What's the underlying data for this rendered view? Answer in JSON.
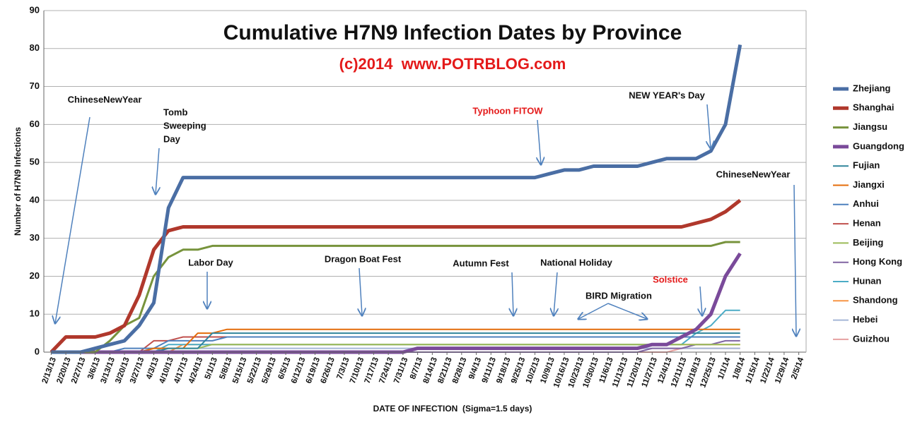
{
  "chart_data": {
    "type": "line",
    "title": "Cumulative H7N9 Infection Dates by Province",
    "subtitle": "(c)2014  www.POTRBLOG.com",
    "x_label": "DATE OF INFECTION  (Sigma=1.5 days)",
    "y_label": "Number of H7N9 Infections",
    "ylim": [
      0,
      90
    ],
    "yticks": [
      0,
      10,
      20,
      30,
      40,
      50,
      60,
      70,
      80,
      90
    ],
    "grid": true,
    "legend": "right",
    "categories": [
      "2/13/13",
      "2/20/13",
      "2/27/13",
      "3/6/13",
      "3/13/13",
      "3/20/13",
      "3/27/13",
      "4/3/13",
      "4/10/13",
      "4/17/13",
      "4/24/13",
      "5/1/13",
      "5/8/13",
      "5/15/13",
      "5/22/13",
      "5/29/13",
      "6/5/13",
      "6/12/13",
      "6/19/13",
      "6/26/13",
      "7/3/13",
      "7/10/13",
      "7/17/13",
      "7/24/13",
      "7/31/13",
      "8/7/13",
      "8/14/13",
      "8/21/13",
      "8/28/13",
      "9/4/13",
      "9/11/13",
      "9/18/13",
      "9/25/13",
      "10/2/13",
      "10/9/13",
      "10/16/13",
      "10/23/13",
      "10/30/13",
      "11/6/13",
      "11/13/13",
      "11/20/13",
      "11/27/13",
      "12/4/13",
      "12/11/13",
      "12/18/13",
      "12/25/13",
      "1/1/14",
      "1/8/14",
      "1/15/14",
      "1/22/14",
      "1/29/14",
      "2/5/14"
    ],
    "series": [
      {
        "name": "Zhejiang",
        "color": "#4a6ea4",
        "width": 5,
        "values": [
          0,
          0,
          0,
          1,
          2,
          3,
          7,
          13,
          38,
          46,
          46,
          46,
          46,
          46,
          46,
          46,
          46,
          46,
          46,
          46,
          46,
          46,
          46,
          46,
          46,
          46,
          46,
          46,
          46,
          46,
          46,
          46,
          46,
          46,
          47,
          48,
          48,
          49,
          49,
          49,
          49,
          50,
          51,
          51,
          51,
          53,
          60,
          81,
          null,
          null,
          null,
          null
        ]
      },
      {
        "name": "Shanghai",
        "color": "#b0382c",
        "width": 5,
        "values": [
          0,
          4,
          4,
          4,
          5,
          7,
          15,
          27,
          32,
          33,
          33,
          33,
          33,
          33,
          33,
          33,
          33,
          33,
          33,
          33,
          33,
          33,
          33,
          33,
          33,
          33,
          33,
          33,
          33,
          33,
          33,
          33,
          33,
          33,
          33,
          33,
          33,
          33,
          33,
          33,
          33,
          33,
          33,
          33,
          34,
          35,
          37,
          40,
          null,
          null,
          null,
          null
        ]
      },
      {
        "name": "Jiangsu",
        "color": "#77933c",
        "width": 3,
        "values": [
          0,
          0,
          0,
          0,
          3,
          7,
          9,
          20,
          25,
          27,
          27,
          28,
          28,
          28,
          28,
          28,
          28,
          28,
          28,
          28,
          28,
          28,
          28,
          28,
          28,
          28,
          28,
          28,
          28,
          28,
          28,
          28,
          28,
          28,
          28,
          28,
          28,
          28,
          28,
          28,
          28,
          28,
          28,
          28,
          28,
          28,
          29,
          29,
          null,
          null,
          null,
          null
        ]
      },
      {
        "name": "Guangdong",
        "color": "#7a4a9a",
        "width": 5,
        "values": [
          0,
          0,
          0,
          0,
          0,
          0,
          0,
          0,
          0,
          0,
          0,
          0,
          0,
          0,
          0,
          0,
          0,
          0,
          0,
          0,
          0,
          0,
          0,
          0,
          0,
          1,
          1,
          1,
          1,
          1,
          1,
          1,
          1,
          1,
          1,
          1,
          1,
          1,
          1,
          1,
          1,
          2,
          2,
          4,
          6,
          10,
          20,
          26,
          null,
          null,
          null,
          null
        ]
      },
      {
        "name": "Fujian",
        "color": "#31859c",
        "width": 2,
        "values": [
          0,
          0,
          0,
          0,
          0,
          0,
          0,
          0,
          1,
          1,
          1,
          5,
          5,
          5,
          5,
          5,
          5,
          5,
          5,
          5,
          5,
          5,
          5,
          5,
          5,
          5,
          5,
          5,
          5,
          5,
          5,
          5,
          5,
          5,
          5,
          5,
          5,
          5,
          5,
          5,
          5,
          5,
          5,
          5,
          5,
          5,
          5,
          5,
          null,
          null,
          null,
          null
        ]
      },
      {
        "name": "Jiangxi",
        "color": "#e46c0a",
        "width": 2,
        "values": [
          0,
          0,
          0,
          0,
          0,
          0,
          0,
          1,
          1,
          1,
          5,
          5,
          6,
          6,
          6,
          6,
          6,
          6,
          6,
          6,
          6,
          6,
          6,
          6,
          6,
          6,
          6,
          6,
          6,
          6,
          6,
          6,
          6,
          6,
          6,
          6,
          6,
          6,
          6,
          6,
          6,
          6,
          6,
          6,
          6,
          6,
          6,
          6,
          null,
          null,
          null,
          null
        ]
      },
      {
        "name": "Anhui",
        "color": "#4f81bd",
        "width": 2,
        "values": [
          0,
          0,
          0,
          0,
          0,
          1,
          1,
          1,
          3,
          3,
          3,
          3,
          4,
          4,
          4,
          4,
          4,
          4,
          4,
          4,
          4,
          4,
          4,
          4,
          4,
          4,
          4,
          4,
          4,
          4,
          4,
          4,
          4,
          4,
          4,
          4,
          4,
          4,
          4,
          4,
          4,
          4,
          4,
          4,
          4,
          4,
          4,
          4,
          null,
          null,
          null,
          null
        ]
      },
      {
        "name": "Henan",
        "color": "#c0504d",
        "width": 2,
        "values": [
          0,
          0,
          0,
          0,
          0,
          0,
          0,
          3,
          3,
          4,
          4,
          4,
          4,
          4,
          4,
          4,
          4,
          4,
          4,
          4,
          4,
          4,
          4,
          4,
          4,
          4,
          4,
          4,
          4,
          4,
          4,
          4,
          4,
          4,
          4,
          4,
          4,
          4,
          4,
          4,
          4,
          4,
          4,
          4,
          4,
          4,
          4,
          4,
          null,
          null,
          null,
          null
        ]
      },
      {
        "name": "Beijing",
        "color": "#9bbb59",
        "width": 2,
        "values": [
          0,
          0,
          0,
          0,
          0,
          0,
          0,
          1,
          1,
          1,
          1,
          2,
          2,
          2,
          2,
          2,
          2,
          2,
          2,
          2,
          2,
          2,
          2,
          2,
          2,
          2,
          2,
          2,
          2,
          2,
          2,
          2,
          2,
          2,
          2,
          2,
          2,
          2,
          2,
          2,
          2,
          2,
          2,
          2,
          2,
          2,
          2,
          2,
          null,
          null,
          null,
          null
        ]
      },
      {
        "name": "Hong Kong",
        "color": "#8064a2",
        "width": 2,
        "values": [
          0,
          0,
          0,
          0,
          0,
          0,
          0,
          0,
          0,
          0,
          0,
          0,
          0,
          0,
          0,
          0,
          0,
          0,
          0,
          0,
          0,
          0,
          0,
          0,
          0,
          0,
          0,
          0,
          0,
          0,
          0,
          0,
          0,
          0,
          0,
          0,
          0,
          0,
          0,
          0,
          0,
          1,
          1,
          1,
          2,
          2,
          3,
          3,
          null,
          null,
          null,
          null
        ]
      },
      {
        "name": "Hunan",
        "color": "#4bacc6",
        "width": 2,
        "values": [
          0,
          0,
          0,
          0,
          0,
          0,
          0,
          0,
          2,
          2,
          2,
          2,
          2,
          2,
          2,
          2,
          2,
          2,
          2,
          2,
          2,
          2,
          2,
          2,
          2,
          2,
          2,
          2,
          2,
          2,
          2,
          2,
          2,
          2,
          2,
          2,
          2,
          2,
          2,
          2,
          2,
          2,
          2,
          2,
          5,
          7,
          11,
          11,
          null,
          null,
          null,
          null
        ]
      },
      {
        "name": "Shandong",
        "color": "#f79646",
        "width": 2,
        "values": [
          0,
          0,
          0,
          0,
          0,
          0,
          0,
          0,
          0,
          2,
          2,
          2,
          2,
          2,
          2,
          2,
          2,
          2,
          2,
          2,
          2,
          2,
          2,
          2,
          2,
          2,
          2,
          2,
          2,
          2,
          2,
          2,
          2,
          2,
          2,
          2,
          2,
          2,
          2,
          2,
          2,
          2,
          2,
          2,
          2,
          2,
          2,
          2,
          null,
          null,
          null,
          null
        ]
      },
      {
        "name": "Hebei",
        "color": "#a5b6d6",
        "width": 2,
        "values": [
          0,
          0,
          0,
          0,
          0,
          0,
          0,
          1,
          1,
          1,
          1,
          1,
          1,
          1,
          1,
          1,
          1,
          1,
          1,
          1,
          1,
          1,
          1,
          1,
          1,
          1,
          1,
          1,
          1,
          1,
          1,
          1,
          1,
          1,
          1,
          1,
          1,
          1,
          1,
          1,
          1,
          1,
          1,
          1,
          1,
          1,
          1,
          1,
          null,
          null,
          null,
          null
        ]
      },
      {
        "name": "Guizhou",
        "color": "#e6a1a0",
        "width": 2,
        "values": [
          0,
          0,
          0,
          0,
          0,
          0,
          0,
          0,
          0,
          0,
          0,
          0,
          0,
          0,
          0,
          0,
          0,
          0,
          0,
          0,
          0,
          0,
          0,
          0,
          0,
          0,
          0,
          0,
          0,
          0,
          0,
          0,
          0,
          0,
          0,
          0,
          0,
          0,
          0,
          0,
          0,
          0,
          0,
          1,
          1,
          1,
          1,
          1,
          null,
          null,
          null,
          null
        ]
      }
    ],
    "annotations": [
      {
        "text": [
          "ChineseNewYear"
        ],
        "color": "#111111"
      },
      {
        "text": [
          "Tomb",
          "Sweeping",
          "Day"
        ],
        "color": "#111111"
      },
      {
        "text": [
          "Labor Day"
        ],
        "color": "#111111"
      },
      {
        "text": [
          "Dragon Boat Fest"
        ],
        "color": "#111111"
      },
      {
        "text": [
          "Autumn Fest"
        ],
        "color": "#111111"
      },
      {
        "text": [
          "National Holiday"
        ],
        "color": "#111111"
      },
      {
        "text": [
          "BIRD Migration"
        ],
        "color": "#111111"
      },
      {
        "text": [
          "Solstice"
        ],
        "color": "#e41a1a"
      },
      {
        "text": [
          "Typhoon FITOW"
        ],
        "color": "#e41a1a"
      },
      {
        "text": [
          "NEW YEAR's Day"
        ],
        "color": "#111111"
      },
      {
        "text": [
          "ChineseNewYear"
        ],
        "color": "#111111"
      }
    ]
  }
}
